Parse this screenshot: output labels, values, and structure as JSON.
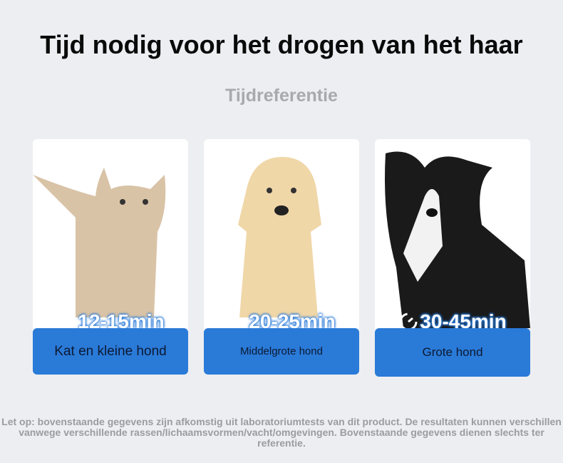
{
  "title": "Tijd nodig voor het drogen van het haar",
  "subtitle": "Tijdreferentie",
  "cards": [
    {
      "time": "12-15min",
      "label": "Kat en kleine hond",
      "image": "cat",
      "icon": "timer-icon"
    },
    {
      "time": "20-25min",
      "label": "Middelgrote hond",
      "image": "puppy",
      "icon": "timer-icon"
    },
    {
      "time": "30-45min",
      "label": "Grote hond",
      "image": "border-collie",
      "icon": "timer-icon"
    }
  ],
  "note": "Let op: bovenstaande gegevens zijn afkomstig uit laboratoriumtests van dit product. De resultaten kunnen verschillen vanwege verschillende rassen/lichaamsvormen/vacht/omgevingen. Bovenstaande gegevens dienen slechts ter referentie.",
  "colors": {
    "accent": "#2a7ad8",
    "background": "#eceef2"
  }
}
